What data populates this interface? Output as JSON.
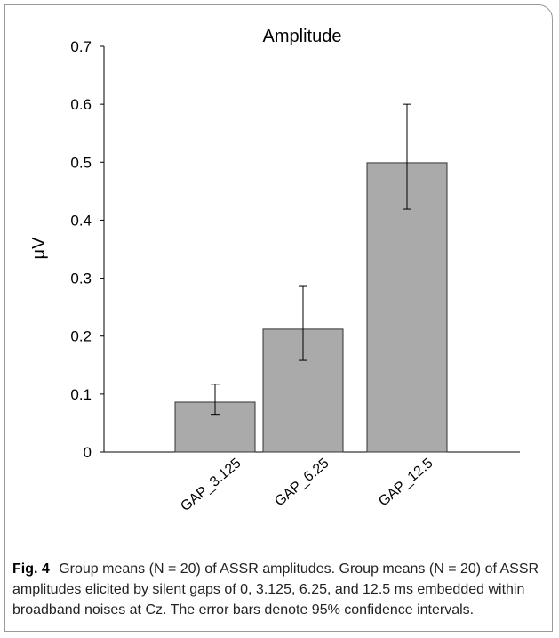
{
  "chart_data": {
    "type": "bar",
    "title": "Amplitude",
    "ylabel": "μV",
    "xlabel": "",
    "categories": [
      "GAP_3.125",
      "GAP_6.25",
      "GAP_12.5"
    ],
    "values": [
      0.086,
      0.212,
      0.499
    ],
    "error_low": [
      0.065,
      0.158,
      0.419
    ],
    "error_high": [
      0.117,
      0.287,
      0.6
    ],
    "ylim": [
      0,
      0.7
    ],
    "yticks": [
      "0",
      "0.1",
      "0.2",
      "0.3",
      "0.4",
      "0.5",
      "0.6",
      "0.7"
    ],
    "bar_color": "#aaaaaa",
    "grid": false
  },
  "caption": {
    "label": "Fig. 4",
    "text": "Group means (N = 20) of ASSR amplitudes. Group means (N = 20) of ASSR amplitudes elicited by silent gaps of 0, 3.125, 6.25, and 12.5 ms embedded within broadband noises at Cz. The error bars denote 95% confidence intervals."
  }
}
